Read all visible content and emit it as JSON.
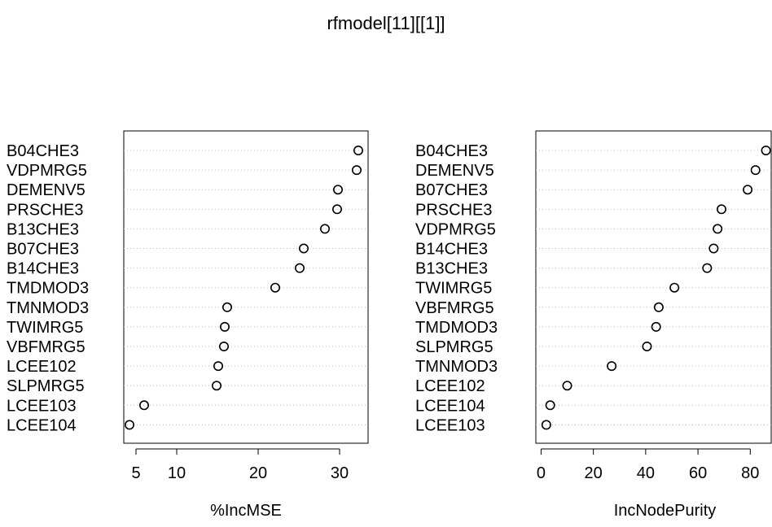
{
  "title": "rfmodel[11][[1]]",
  "chart_data": [
    {
      "type": "scatter",
      "xlabel": "%IncMSE",
      "xlim": [
        3.5,
        33.5
      ],
      "xticks": [
        5,
        10,
        20,
        30
      ],
      "labels": [
        "B04CHE3",
        "VDPMRG5",
        "DEMENV5",
        "PRSCHE3",
        "B13CHE3",
        "B07CHE3",
        "B14CHE3",
        "TMDMOD3",
        "TMNMOD3",
        "TWIMRG5",
        "VBFMRG5",
        "LCEE102",
        "SLPMRG5",
        "LCEE103",
        "LCEE104"
      ],
      "values": [
        32.3,
        32.1,
        29.8,
        29.7,
        28.2,
        25.6,
        25.1,
        22.1,
        16.2,
        15.9,
        15.8,
        15.1,
        14.9,
        6.0,
        4.2
      ]
    },
    {
      "type": "scatter",
      "xlabel": "IncNodePurity",
      "xlim": [
        -2,
        88
      ],
      "xticks": [
        0,
        20,
        40,
        60,
        80
      ],
      "labels": [
        "B04CHE3",
        "DEMENV5",
        "B07CHE3",
        "PRSCHE3",
        "VDPMRG5",
        "B14CHE3",
        "B13CHE3",
        "TWIMRG5",
        "VBFMRG5",
        "TMDMOD3",
        "SLPMRG5",
        "TMNMOD3",
        "LCEE102",
        "LCEE104",
        "LCEE103"
      ],
      "values": [
        86,
        82,
        79,
        69,
        67.5,
        66,
        63.5,
        51,
        45,
        44,
        40.5,
        27,
        10,
        3.5,
        2
      ]
    }
  ]
}
